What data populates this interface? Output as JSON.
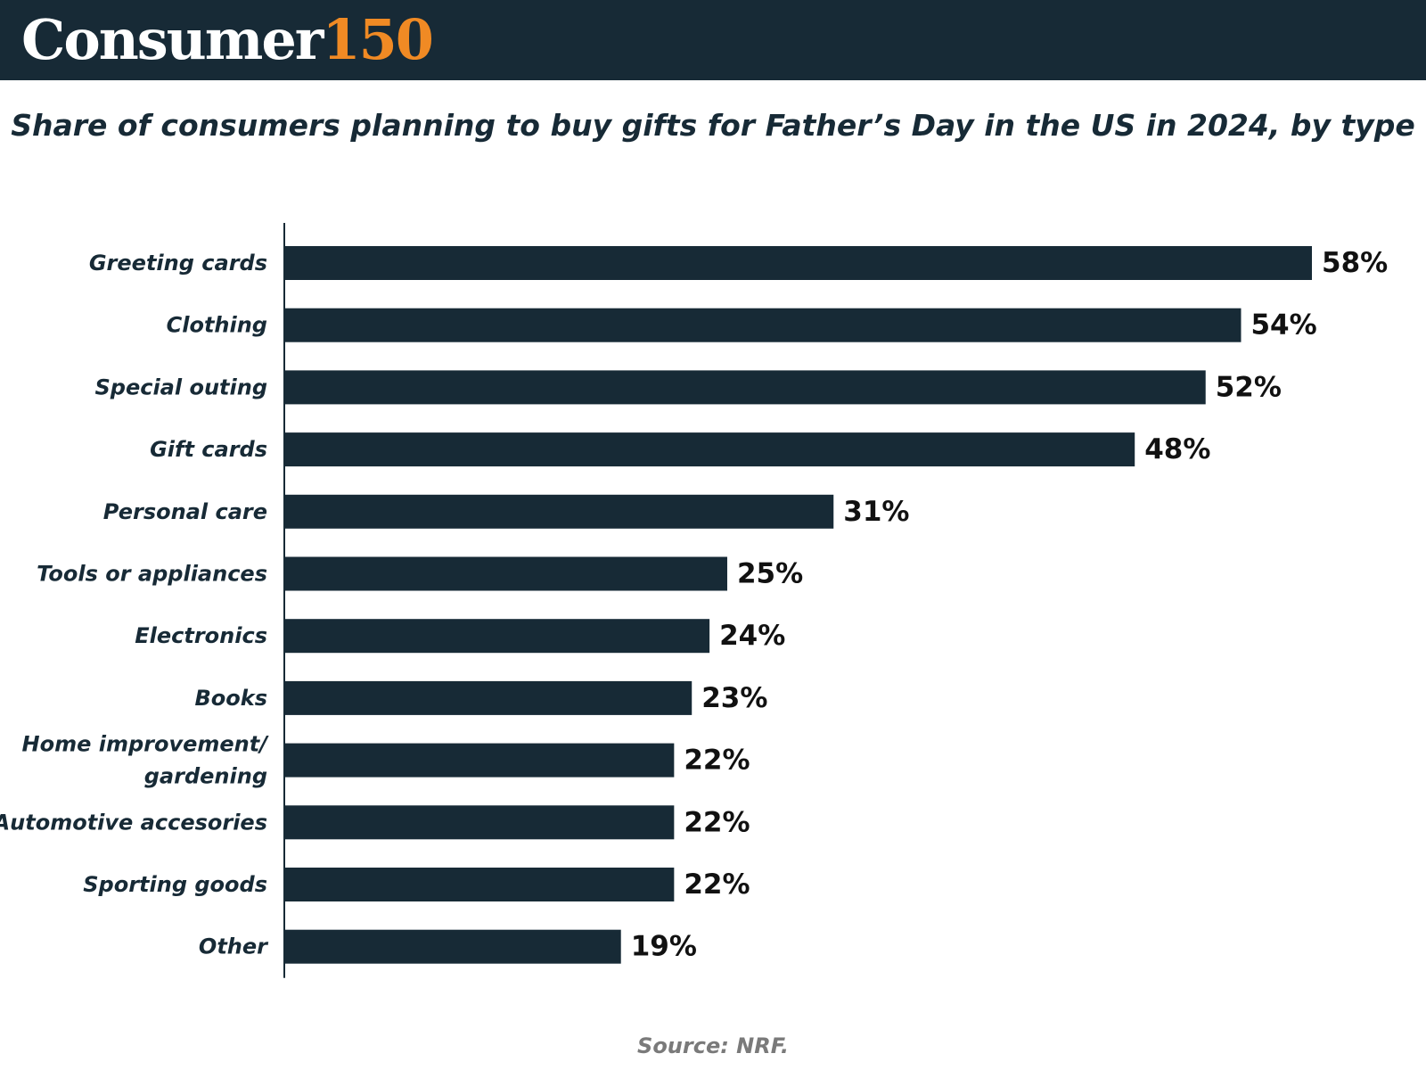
{
  "brand": {
    "word": "Consumer",
    "number": "150"
  },
  "colors": {
    "header_bg": "#172a36",
    "bar": "#172a36",
    "brand_accent": "#f08a24",
    "source_text": "#7a7a7a"
  },
  "footer": {
    "source": "Source: NRF."
  },
  "chart_data": {
    "type": "bar",
    "orientation": "horizontal",
    "title": "Share of consumers planning to buy gifts for Father’s Day in the US in 2024, by type",
    "xlabel": "",
    "ylabel": "",
    "xlim": [
      0,
      58
    ],
    "grid": false,
    "legend": "none",
    "categories": [
      "Greeting cards",
      "Clothing",
      "Special outing",
      "Gift cards",
      "Personal care",
      "Tools or appliances",
      "Electronics",
      "Books",
      "Home improvement/ gardening",
      "Automotive accesories",
      "Sporting goods",
      "Other"
    ],
    "values": [
      58,
      54,
      52,
      48,
      31,
      25,
      24,
      23,
      22,
      22,
      22,
      19
    ],
    "data_labels": [
      "58%",
      "54%",
      "52%",
      "48%",
      "31%",
      "25%",
      "24%",
      "23%",
      "22%",
      "22%",
      "22%",
      "19%"
    ],
    "category_label_lines": [
      [
        "Greeting cards"
      ],
      [
        "Clothing"
      ],
      [
        "Special outing"
      ],
      [
        "Gift cards"
      ],
      [
        "Personal care"
      ],
      [
        "Tools or appliances"
      ],
      [
        "Electronics"
      ],
      [
        "Books"
      ],
      [
        "Home improvement/",
        "gardening"
      ],
      [
        "Automotive accesories"
      ],
      [
        "Sporting goods"
      ],
      [
        "Other"
      ]
    ]
  }
}
